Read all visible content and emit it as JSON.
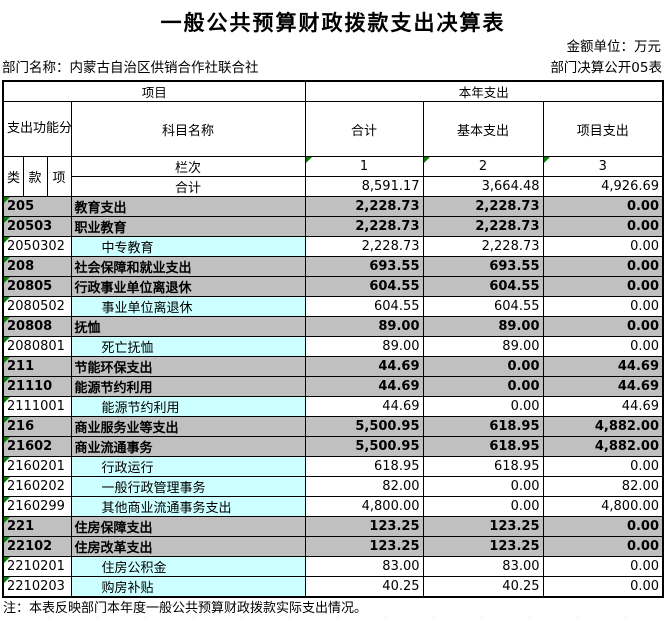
{
  "page": {
    "title": "一般公共预算财政拨款支出决算表",
    "unit_label": "金额单位：万元",
    "department_label": "部门名称：内蒙古自治区供销合作社联合社",
    "sheet_label": "部门决算公开05表",
    "note": "注：本表反映部门本年度一般公共预算财政拨款实际支出情况。"
  },
  "table": {
    "header": {
      "project_group": "项目",
      "current_year_group": "本年支出",
      "code_group": "支出功能分类科目编码",
      "subject_name": "科目名称",
      "total": "合计",
      "basic": "基本支出",
      "project_exp": "项目支出",
      "class": "类",
      "section": "款",
      "item": "项",
      "column_label": "栏次",
      "col_numbers": [
        "1",
        "2",
        "3"
      ]
    },
    "summary": {
      "label": "合计",
      "total": "8,591.17",
      "basic": "3,664.48",
      "project": "4,926.69"
    },
    "rows": [
      {
        "code": "205",
        "name": "教育支出",
        "total": "2,228.73",
        "basic": "2,228.73",
        "project": "0.00",
        "level": "major"
      },
      {
        "code": "20503",
        "name": "职业教育",
        "total": "2,228.73",
        "basic": "2,228.73",
        "project": "0.00",
        "level": "major"
      },
      {
        "code": "2050302",
        "name": "中专教育",
        "total": "2,228.73",
        "basic": "2,228.73",
        "project": "0.00",
        "level": "detail"
      },
      {
        "code": "208",
        "name": "社会保障和就业支出",
        "total": "693.55",
        "basic": "693.55",
        "project": "0.00",
        "level": "major"
      },
      {
        "code": "20805",
        "name": "行政事业单位离退休",
        "total": "604.55",
        "basic": "604.55",
        "project": "0.00",
        "level": "major"
      },
      {
        "code": "2080502",
        "name": "事业单位离退休",
        "total": "604.55",
        "basic": "604.55",
        "project": "0.00",
        "level": "detail"
      },
      {
        "code": "20808",
        "name": "抚恤",
        "total": "89.00",
        "basic": "89.00",
        "project": "0.00",
        "level": "major"
      },
      {
        "code": "2080801",
        "name": "死亡抚恤",
        "total": "89.00",
        "basic": "89.00",
        "project": "0.00",
        "level": "detail"
      },
      {
        "code": "211",
        "name": "节能环保支出",
        "total": "44.69",
        "basic": "0.00",
        "project": "44.69",
        "level": "major"
      },
      {
        "code": "21110",
        "name": "能源节约利用",
        "total": "44.69",
        "basic": "0.00",
        "project": "44.69",
        "level": "major"
      },
      {
        "code": "2111001",
        "name": "能源节约利用",
        "total": "44.69",
        "basic": "0.00",
        "project": "44.69",
        "level": "detail"
      },
      {
        "code": "216",
        "name": "商业服务业等支出",
        "total": "5,500.95",
        "basic": "618.95",
        "project": "4,882.00",
        "level": "major"
      },
      {
        "code": "21602",
        "name": "商业流通事务",
        "total": "5,500.95",
        "basic": "618.95",
        "project": "4,882.00",
        "level": "major"
      },
      {
        "code": "2160201",
        "name": "行政运行",
        "total": "618.95",
        "basic": "618.95",
        "project": "0.00",
        "level": "detail"
      },
      {
        "code": "2160202",
        "name": "一般行政管理事务",
        "total": "82.00",
        "basic": "0.00",
        "project": "82.00",
        "level": "detail"
      },
      {
        "code": "2160299",
        "name": "其他商业流通事务支出",
        "total": "4,800.00",
        "basic": "0.00",
        "project": "4,800.00",
        "level": "detail"
      },
      {
        "code": "221",
        "name": "住房保障支出",
        "total": "123.25",
        "basic": "123.25",
        "project": "0.00",
        "level": "major"
      },
      {
        "code": "22102",
        "name": "住房改革支出",
        "total": "123.25",
        "basic": "123.25",
        "project": "0.00",
        "level": "major"
      },
      {
        "code": "2210201",
        "name": "住房公积金",
        "total": "83.00",
        "basic": "83.00",
        "project": "0.00",
        "level": "detail"
      },
      {
        "code": "2210203",
        "name": "购房补贴",
        "total": "40.25",
        "basic": "40.25",
        "project": "0.00",
        "level": "detail"
      }
    ]
  },
  "colors": {
    "band_gray": "#c0c0c0",
    "detail_cyan": "#ccffff",
    "marker_green": "#087808",
    "border_black": "#000000"
  }
}
